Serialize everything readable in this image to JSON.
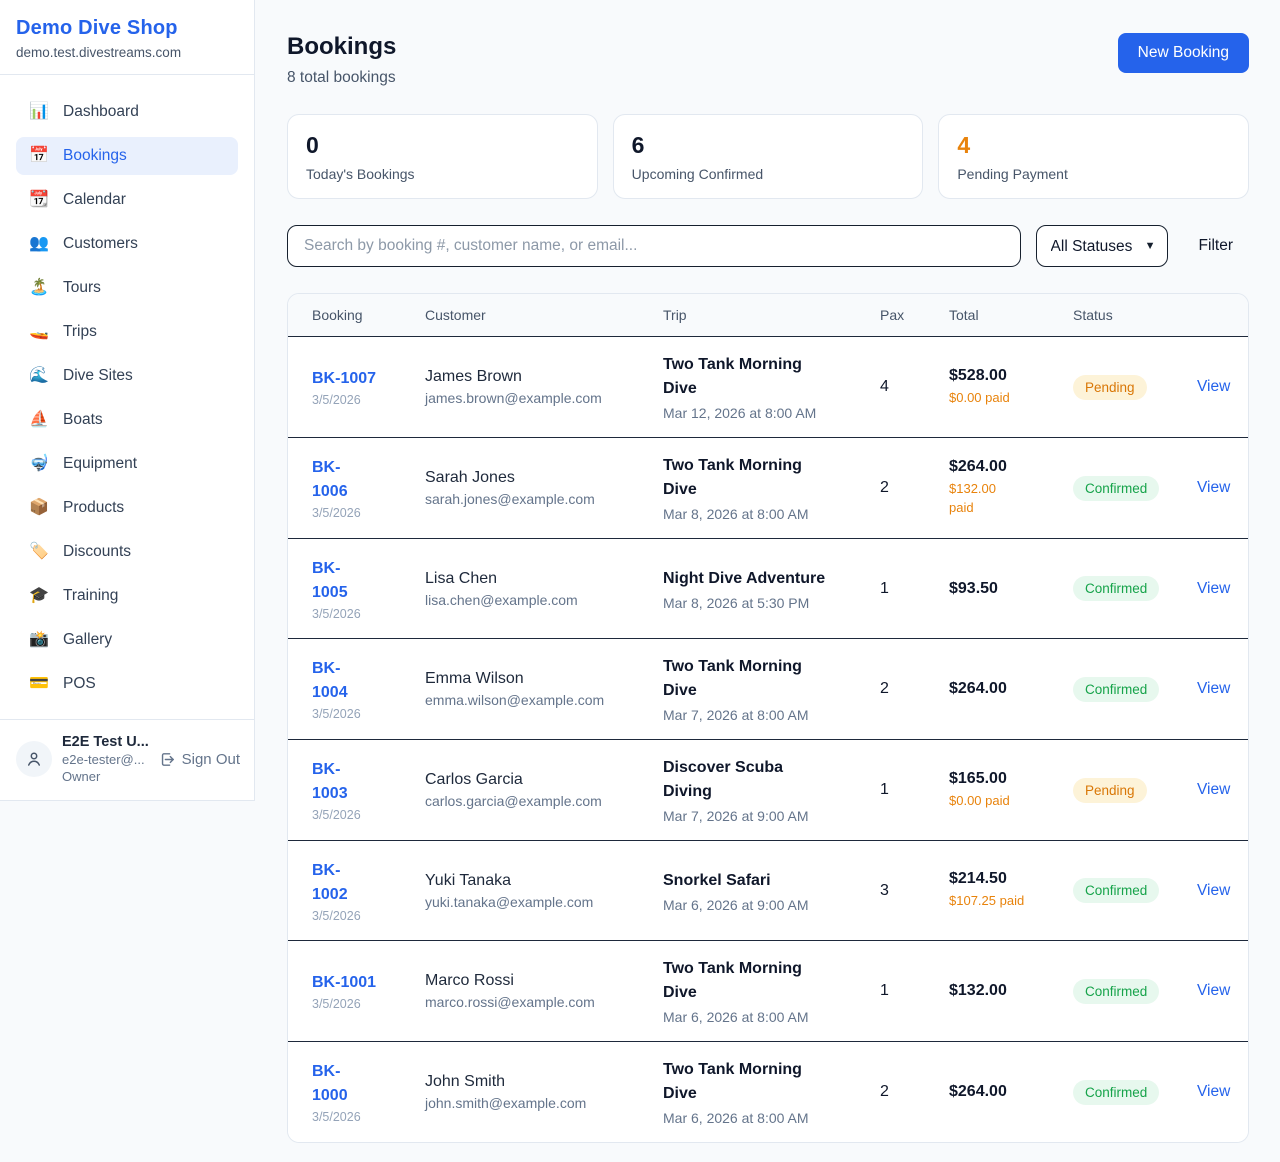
{
  "sidebar": {
    "brand": "Demo Dive Shop",
    "domain": "demo.test.divestreams.com",
    "items": [
      {
        "icon": "📊",
        "icon_name": "dashboard-chart-icon",
        "label": "Dashboard",
        "active": false
      },
      {
        "icon": "📅",
        "icon_name": "bookings-calendar-icon",
        "label": "Bookings",
        "active": true
      },
      {
        "icon": "📆",
        "icon_name": "calendar-icon",
        "label": "Calendar",
        "active": false
      },
      {
        "icon": "👥",
        "icon_name": "customers-icon",
        "label": "Customers",
        "active": false
      },
      {
        "icon": "🏝️",
        "icon_name": "tours-island-icon",
        "label": "Tours",
        "active": false
      },
      {
        "icon": "🚤",
        "icon_name": "trips-speedboat-icon",
        "label": "Trips",
        "active": false
      },
      {
        "icon": "🌊",
        "icon_name": "dive-sites-wave-icon",
        "label": "Dive Sites",
        "active": false
      },
      {
        "icon": "⛵",
        "icon_name": "boats-sailboat-icon",
        "label": "Boats",
        "active": false
      },
      {
        "icon": "🤿",
        "icon_name": "equipment-mask-icon",
        "label": "Equipment",
        "active": false
      },
      {
        "icon": "📦",
        "icon_name": "products-package-icon",
        "label": "Products",
        "active": false
      },
      {
        "icon": "🏷️",
        "icon_name": "discounts-tag-icon",
        "label": "Discounts",
        "active": false
      },
      {
        "icon": "🎓",
        "icon_name": "training-cap-icon",
        "label": "Training",
        "active": false
      },
      {
        "icon": "📸",
        "icon_name": "gallery-camera-icon",
        "label": "Gallery",
        "active": false
      },
      {
        "icon": "💳",
        "icon_name": "pos-card-icon",
        "label": "POS",
        "active": false
      }
    ],
    "user": {
      "name": "E2E Test U...",
      "email": "e2e-tester@...",
      "role": "Owner",
      "sign_out": "Sign Out"
    }
  },
  "header": {
    "title": "Bookings",
    "subtitle": "8 total bookings",
    "new_booking": "New Booking"
  },
  "stats": [
    {
      "value": "0",
      "label": "Today's Bookings",
      "accent": false
    },
    {
      "value": "6",
      "label": "Upcoming Confirmed",
      "accent": false
    },
    {
      "value": "4",
      "label": "Pending Payment",
      "accent": true
    }
  ],
  "filters": {
    "search_placeholder": "Search by booking #, customer name, or email...",
    "status_value": "All Statuses",
    "filter_label": "Filter"
  },
  "table": {
    "columns": [
      "Booking",
      "Customer",
      "Trip",
      "Pax",
      "Total",
      "Status"
    ],
    "rows": [
      {
        "id": "BK-1007",
        "date": "3/5/2026",
        "customer": "James Brown",
        "email": "james.brown@example.com",
        "trip": "Two Tank Morning\nDive",
        "trip_date": "Mar 12, 2026 at 8:00 AM",
        "pax": "4",
        "total": "$528.00",
        "paid": "$0.00 paid",
        "status": "Pending",
        "action": "View"
      },
      {
        "id": "BK-\n1006",
        "date": "3/5/2026",
        "customer": "Sarah Jones",
        "email": "sarah.jones@example.com",
        "trip": "Two Tank Morning\nDive",
        "trip_date": "Mar 8, 2026 at 8:00 AM",
        "pax": "2",
        "total": "$264.00",
        "paid": "$132.00\npaid",
        "status": "Confirmed",
        "action": "View"
      },
      {
        "id": "BK-\n1005",
        "date": "3/5/2026",
        "customer": "Lisa Chen",
        "email": "lisa.chen@example.com",
        "trip": "Night Dive Adventure",
        "trip_date": "Mar 8, 2026 at 5:30 PM",
        "pax": "1",
        "total": "$93.50",
        "paid": "",
        "status": "Confirmed",
        "action": "View"
      },
      {
        "id": "BK-\n1004",
        "date": "3/5/2026",
        "customer": "Emma Wilson",
        "email": "emma.wilson@example.com",
        "trip": "Two Tank Morning\nDive",
        "trip_date": "Mar 7, 2026 at 8:00 AM",
        "pax": "2",
        "total": "$264.00",
        "paid": "",
        "status": "Confirmed",
        "action": "View"
      },
      {
        "id": "BK-\n1003",
        "date": "3/5/2026",
        "customer": "Carlos Garcia",
        "email": "carlos.garcia@example.com",
        "trip": "Discover Scuba\nDiving",
        "trip_date": "Mar 7, 2026 at 9:00 AM",
        "pax": "1",
        "total": "$165.00",
        "paid": "$0.00 paid",
        "status": "Pending",
        "action": "View"
      },
      {
        "id": "BK-\n1002",
        "date": "3/5/2026",
        "customer": "Yuki Tanaka",
        "email": "yuki.tanaka@example.com",
        "trip": "Snorkel Safari",
        "trip_date": "Mar 6, 2026 at 9:00 AM",
        "pax": "3",
        "total": "$214.50",
        "paid": "$107.25 paid",
        "status": "Confirmed",
        "action": "View"
      },
      {
        "id": "BK-1001",
        "date": "3/5/2026",
        "customer": "Marco Rossi",
        "email": "marco.rossi@example.com",
        "trip": "Two Tank Morning\nDive",
        "trip_date": "Mar 6, 2026 at 8:00 AM",
        "pax": "1",
        "total": "$132.00",
        "paid": "",
        "status": "Confirmed",
        "action": "View"
      },
      {
        "id": "BK-\n1000",
        "date": "3/5/2026",
        "customer": "John Smith",
        "email": "john.smith@example.com",
        "trip": "Two Tank Morning\nDive",
        "trip_date": "Mar 6, 2026 at 8:00 AM",
        "pax": "2",
        "total": "$264.00",
        "paid": "",
        "status": "Confirmed",
        "action": "View"
      }
    ]
  },
  "colors": {
    "accent": "#2563eb",
    "pending_text": "#d97706",
    "pending_bg": "#fdf3d8",
    "confirmed_text": "#16a34a",
    "confirmed_bg": "#e7f8ee",
    "paid_orange": "#e8830c"
  }
}
